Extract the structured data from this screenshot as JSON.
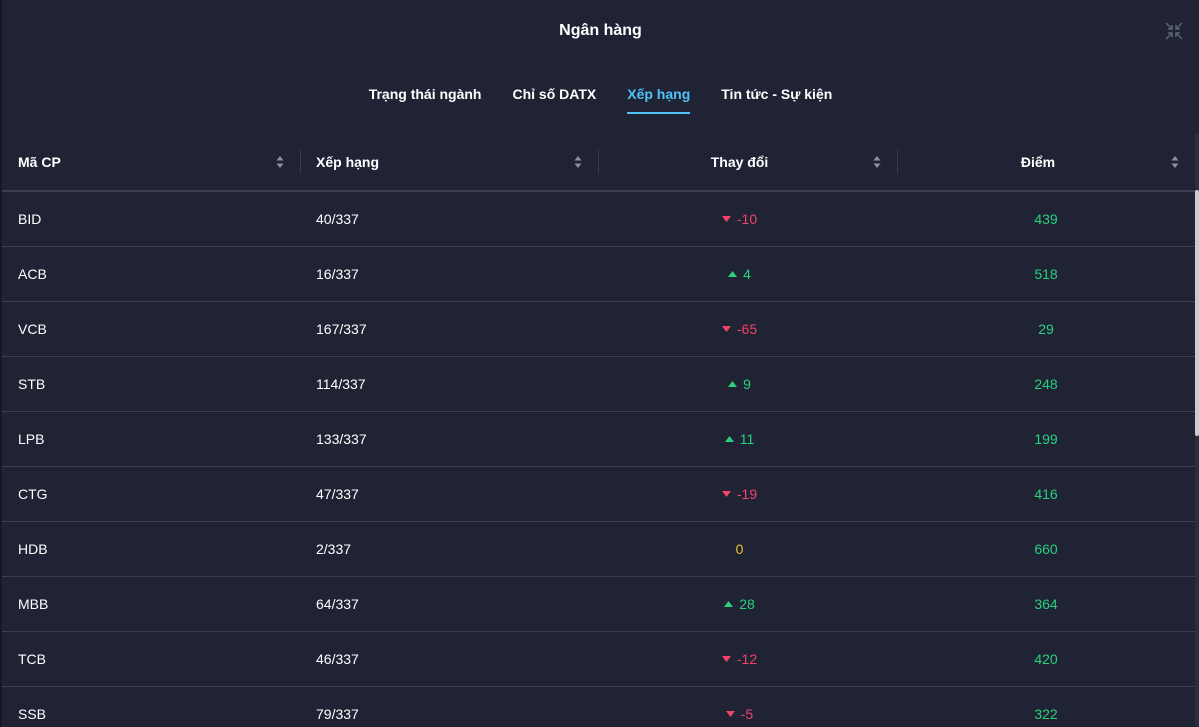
{
  "title": "Ngân hàng",
  "tabs": [
    {
      "label": "Trạng thái ngành",
      "active": false
    },
    {
      "label": "Chỉ số DATX",
      "active": false
    },
    {
      "label": "Xếp hạng",
      "active": true
    },
    {
      "label": "Tin tức - Sự kiện",
      "active": false
    }
  ],
  "columns": {
    "code": "Mã CP",
    "rank": "Xếp hạng",
    "change": "Thay đổi",
    "score": "Điểm"
  },
  "rows": [
    {
      "code": "BID",
      "rank": "40/337",
      "change": "-10",
      "dir": "down",
      "score": "439"
    },
    {
      "code": "ACB",
      "rank": "16/337",
      "change": "4",
      "dir": "up",
      "score": "518"
    },
    {
      "code": "VCB",
      "rank": "167/337",
      "change": "-65",
      "dir": "down",
      "score": "29"
    },
    {
      "code": "STB",
      "rank": "114/337",
      "change": "9",
      "dir": "up",
      "score": "248"
    },
    {
      "code": "LPB",
      "rank": "133/337",
      "change": "11",
      "dir": "up",
      "score": "199"
    },
    {
      "code": "CTG",
      "rank": "47/337",
      "change": "-19",
      "dir": "down",
      "score": "416"
    },
    {
      "code": "HDB",
      "rank": "2/337",
      "change": "0",
      "dir": "flat",
      "score": "660"
    },
    {
      "code": "MBB",
      "rank": "64/337",
      "change": "28",
      "dir": "up",
      "score": "364"
    },
    {
      "code": "TCB",
      "rank": "46/337",
      "change": "-12",
      "dir": "down",
      "score": "420"
    },
    {
      "code": "SSB",
      "rank": "79/337",
      "change": "-5",
      "dir": "down",
      "score": "322"
    }
  ],
  "colors": {
    "background": "#1f2334",
    "accent": "#4fc3f7",
    "up": "#28d17c",
    "down": "#f0446b",
    "flat": "#f2c12e"
  },
  "icons": {
    "collapse": "collapse-icon",
    "sort": "sort-icon",
    "up": "triangle-up-icon",
    "down": "triangle-down-icon"
  }
}
